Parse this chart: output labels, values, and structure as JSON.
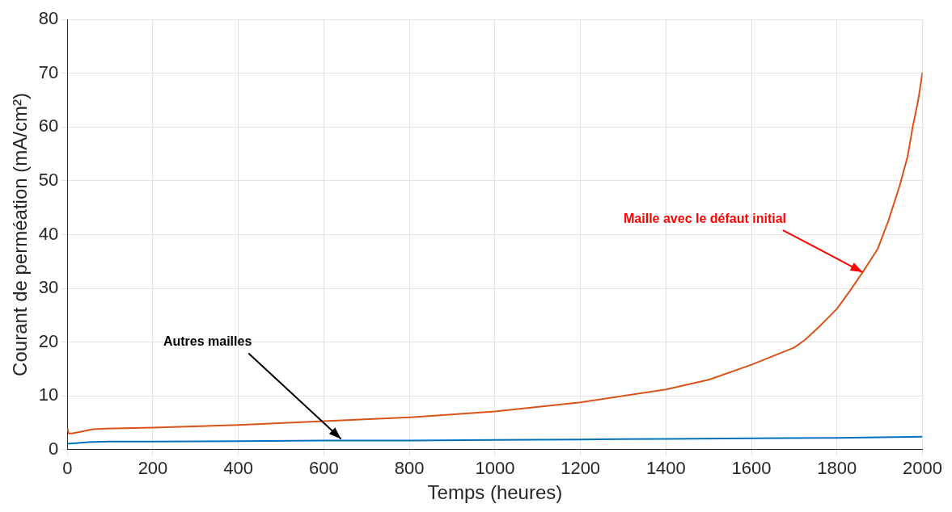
{
  "chart_data": {
    "type": "line",
    "xlabel": "Temps (heures)",
    "ylabel": "Courant de perméation (mA/cm²)",
    "xlim": [
      0,
      2000
    ],
    "ylim": [
      0,
      80
    ],
    "xticks": [
      0,
      200,
      400,
      600,
      800,
      1000,
      1200,
      1400,
      1600,
      1800,
      2000
    ],
    "yticks": [
      0,
      10,
      20,
      30,
      40,
      50,
      60,
      70,
      80
    ],
    "grid": true,
    "legend": false,
    "marker": "none",
    "line_style": "solid",
    "series": [
      {
        "color": "#0072bd",
        "x": [
          0,
          20,
          50,
          100,
          200,
          400,
          600,
          800,
          1000,
          1200,
          1400,
          1600,
          1800,
          2000
        ],
        "values": [
          1.1,
          1.2,
          1.4,
          1.5,
          1.5,
          1.6,
          1.7,
          1.7,
          1.8,
          1.9,
          2.0,
          2.1,
          2.2,
          2.4
        ]
      },
      {
        "color": "#d95319",
        "x": [
          0,
          3,
          10,
          30,
          60,
          90,
          200,
          400,
          600,
          800,
          1000,
          1200,
          1400,
          1500,
          1600,
          1700,
          1725,
          1760,
          1800,
          1830,
          1860,
          1895,
          1920,
          1947,
          1965,
          1977,
          1990,
          2000
        ],
        "values": [
          4.0,
          3.0,
          3.0,
          3.3,
          3.8,
          3.9,
          4.1,
          4.6,
          5.3,
          6.0,
          7.1,
          8.8,
          11.2,
          13.0,
          15.8,
          19.0,
          20.4,
          23.0,
          26.2,
          29.5,
          33.0,
          37.3,
          42.5,
          49.2,
          54.5,
          60.0,
          65.0,
          70.2
        ]
      }
    ],
    "annotations": [
      {
        "text": "Autres mailles",
        "x": 640,
        "y": 2
      },
      {
        "text": "Maille avec le défaut initial",
        "x": 1860,
        "y": 33
      }
    ]
  }
}
